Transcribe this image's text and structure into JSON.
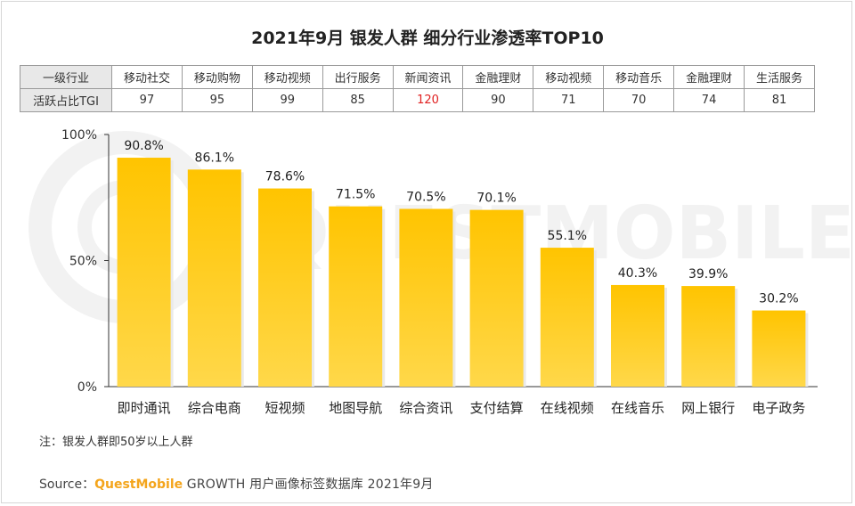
{
  "title": "2021年9月 银发人群 细分行业渗透率TOP10",
  "tgi_table": {
    "row1_label": "一级行业",
    "row2_label": "活跃占比TGI",
    "industries": [
      "移动社交",
      "移动购物",
      "移动视频",
      "出行服务",
      "新闻资讯",
      "金融理财",
      "移动视频",
      "移动音乐",
      "金融理财",
      "生活服务"
    ],
    "tgi": [
      "97",
      "95",
      "99",
      "85",
      "120",
      "90",
      "71",
      "70",
      "74",
      "81"
    ],
    "highlight_color": "#e02020"
  },
  "chart_data": {
    "type": "bar",
    "categories": [
      "即时通讯",
      "综合电商",
      "短视频",
      "地图导航",
      "综合资讯",
      "支付结算",
      "在线视频",
      "在线音乐",
      "网上银行",
      "电子政务"
    ],
    "values": [
      90.8,
      86.1,
      78.6,
      71.5,
      70.5,
      70.1,
      55.1,
      40.3,
      39.9,
      30.2
    ],
    "value_labels": [
      "90.8%",
      "86.1%",
      "78.6%",
      "71.5%",
      "70.5%",
      "70.1%",
      "55.1%",
      "40.3%",
      "39.9%",
      "30.2%"
    ],
    "ylim": [
      0,
      100
    ],
    "yticks": [
      0,
      50,
      100
    ],
    "ytick_labels": [
      "0%",
      "50%",
      "100%"
    ],
    "bar_color_top": "#ffc400",
    "bar_color_bottom": "#ffd84a",
    "grid": false,
    "watermark": "QUESTMOBILE"
  },
  "note": "注：银发人群即50岁以上人群",
  "source": {
    "prefix": "Source：",
    "brand": "QuestMobile",
    "rest": " GROWTH 用户画像标签数据库 2021年9月"
  }
}
